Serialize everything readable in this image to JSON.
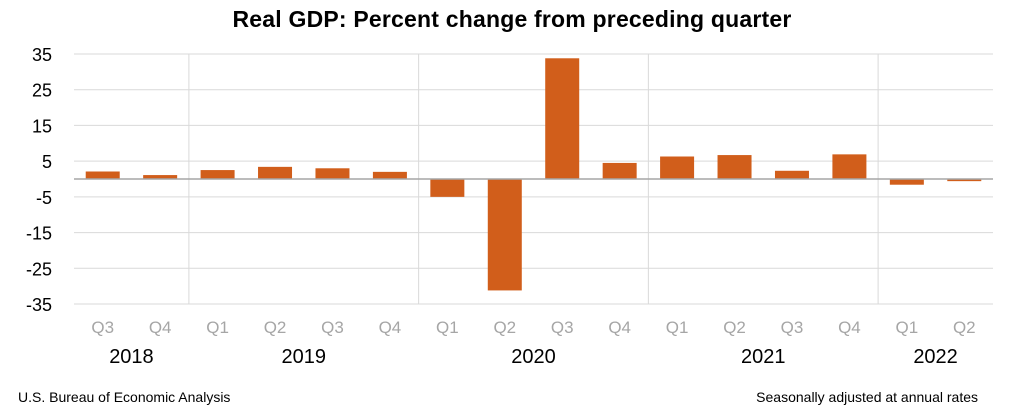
{
  "chart_data": {
    "type": "bar",
    "title": "Real GDP:  Percent change from preceding quarter",
    "categories": [
      "Q3",
      "Q4",
      "Q1",
      "Q2",
      "Q3",
      "Q4",
      "Q1",
      "Q2",
      "Q3",
      "Q4",
      "Q1",
      "Q2",
      "Q3",
      "Q4",
      "Q1",
      "Q2"
    ],
    "years": [
      {
        "label": "2018",
        "start": 0,
        "end": 1
      },
      {
        "label": "2019",
        "start": 2,
        "end": 5
      },
      {
        "label": "2020",
        "start": 6,
        "end": 9
      },
      {
        "label": "2021",
        "start": 10,
        "end": 13
      },
      {
        "label": "2022",
        "start": 14,
        "end": 15
      }
    ],
    "series": [
      {
        "values": [
          2.1,
          1.1,
          2.5,
          3.4,
          3.0,
          2.0,
          -5.0,
          -31.2,
          33.8,
          4.5,
          6.3,
          6.7,
          2.3,
          6.9,
          -1.6,
          -0.6
        ]
      }
    ],
    "ylim": [
      -35,
      35
    ],
    "yticks": [
      35,
      25,
      15,
      5,
      -5,
      -15,
      -25,
      -35
    ],
    "grid": true,
    "bar_color": "#d15e1b",
    "grid_color": "#d9d9d9",
    "axis_color": "#a6a6a6",
    "category_label_color": "#a6a6a6"
  },
  "footer": {
    "source": "U.S. Bureau of Economic Analysis",
    "note": "Seasonally adjusted at annual rates"
  }
}
